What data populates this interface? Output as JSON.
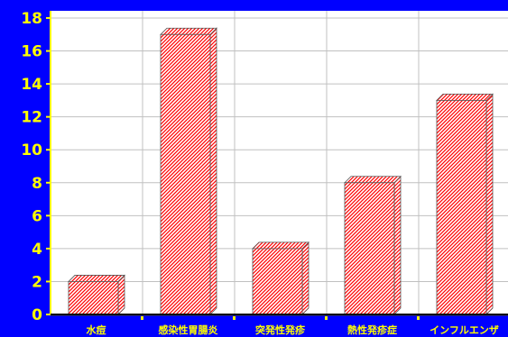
{
  "colors": {
    "background": "#0000ff",
    "plot_area": "#ffffff",
    "tick_text": "#ffff00",
    "bar_pattern": "#ff0000",
    "axis": "#ffff00",
    "grid": "#c0c0c0"
  },
  "chart_data": {
    "type": "bar",
    "style": "3d hatched red columns",
    "categories": [
      "水痘",
      "感染性胃腸炎",
      "突発性発疹",
      "熱性発疹症",
      "インフルエンザ"
    ],
    "values": [
      2,
      17,
      4,
      8,
      13
    ],
    "ylim": [
      0,
      18
    ],
    "yticks": [
      0,
      2,
      4,
      6,
      8,
      10,
      12,
      14,
      16,
      18
    ],
    "grid": true
  }
}
